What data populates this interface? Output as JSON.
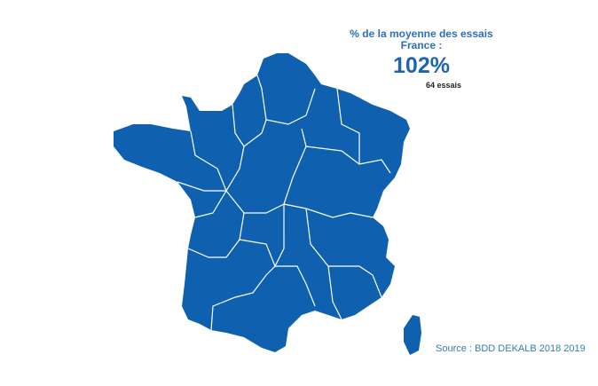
{
  "header": {
    "title_line1": "% de la moyenne des essais",
    "title_line2": "France :",
    "value": "102%",
    "count": "64 essais"
  },
  "map": {
    "region": "France",
    "fill_color": "#0f61b0",
    "border_color": "#ffffff"
  },
  "footer": {
    "source": "Source : BDD DEKALB 2018 2019"
  }
}
